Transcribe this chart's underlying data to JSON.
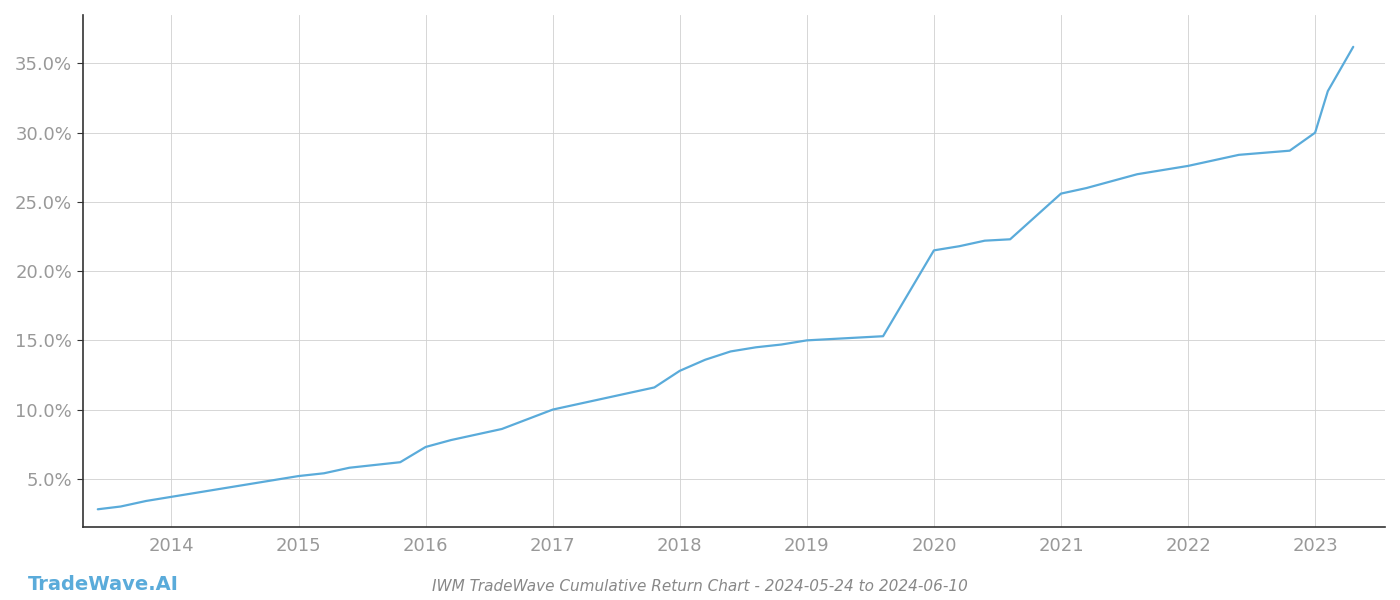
{
  "title": "IWM TradeWave Cumulative Return Chart - 2024-05-24 to 2024-06-10",
  "watermark": "TradeWave.AI",
  "line_color": "#5aabda",
  "background_color": "#ffffff",
  "grid_color": "#d0d0d0",
  "x_years": [
    2014,
    2015,
    2016,
    2017,
    2018,
    2019,
    2020,
    2021,
    2022,
    2023
  ],
  "x_values": [
    2013.42,
    2013.6,
    2013.8,
    2014.0,
    2014.2,
    2014.4,
    2014.6,
    2014.8,
    2015.0,
    2015.2,
    2015.4,
    2015.6,
    2015.8,
    2016.0,
    2016.2,
    2016.4,
    2016.6,
    2016.8,
    2017.0,
    2017.2,
    2017.4,
    2017.6,
    2017.8,
    2018.0,
    2018.2,
    2018.4,
    2018.6,
    2018.8,
    2019.0,
    2019.2,
    2019.4,
    2019.6,
    2020.0,
    2020.2,
    2020.4,
    2020.6,
    2021.0,
    2021.2,
    2021.4,
    2021.6,
    2022.0,
    2022.2,
    2022.4,
    2022.8,
    2023.0,
    2023.1,
    2023.3
  ],
  "y_values": [
    0.028,
    0.03,
    0.034,
    0.037,
    0.04,
    0.043,
    0.046,
    0.049,
    0.052,
    0.054,
    0.058,
    0.06,
    0.062,
    0.073,
    0.078,
    0.082,
    0.086,
    0.093,
    0.1,
    0.104,
    0.108,
    0.112,
    0.116,
    0.128,
    0.136,
    0.142,
    0.145,
    0.147,
    0.15,
    0.151,
    0.152,
    0.153,
    0.215,
    0.218,
    0.222,
    0.223,
    0.256,
    0.26,
    0.265,
    0.27,
    0.276,
    0.28,
    0.284,
    0.287,
    0.3,
    0.33,
    0.362
  ],
  "yticks": [
    0.05,
    0.1,
    0.15,
    0.2,
    0.25,
    0.3,
    0.35
  ],
  "ytick_labels": [
    "5.0%",
    "10.0%",
    "15.0%",
    "20.0%",
    "25.0%",
    "30.0%",
    "35.0%"
  ],
  "xlim": [
    2013.3,
    2023.55
  ],
  "ylim": [
    0.015,
    0.385
  ],
  "line_width": 1.6,
  "title_fontsize": 11,
  "tick_fontsize": 13,
  "watermark_fontsize": 14,
  "spine_color": "#333333",
  "tick_color": "#999999",
  "title_color": "#888888"
}
